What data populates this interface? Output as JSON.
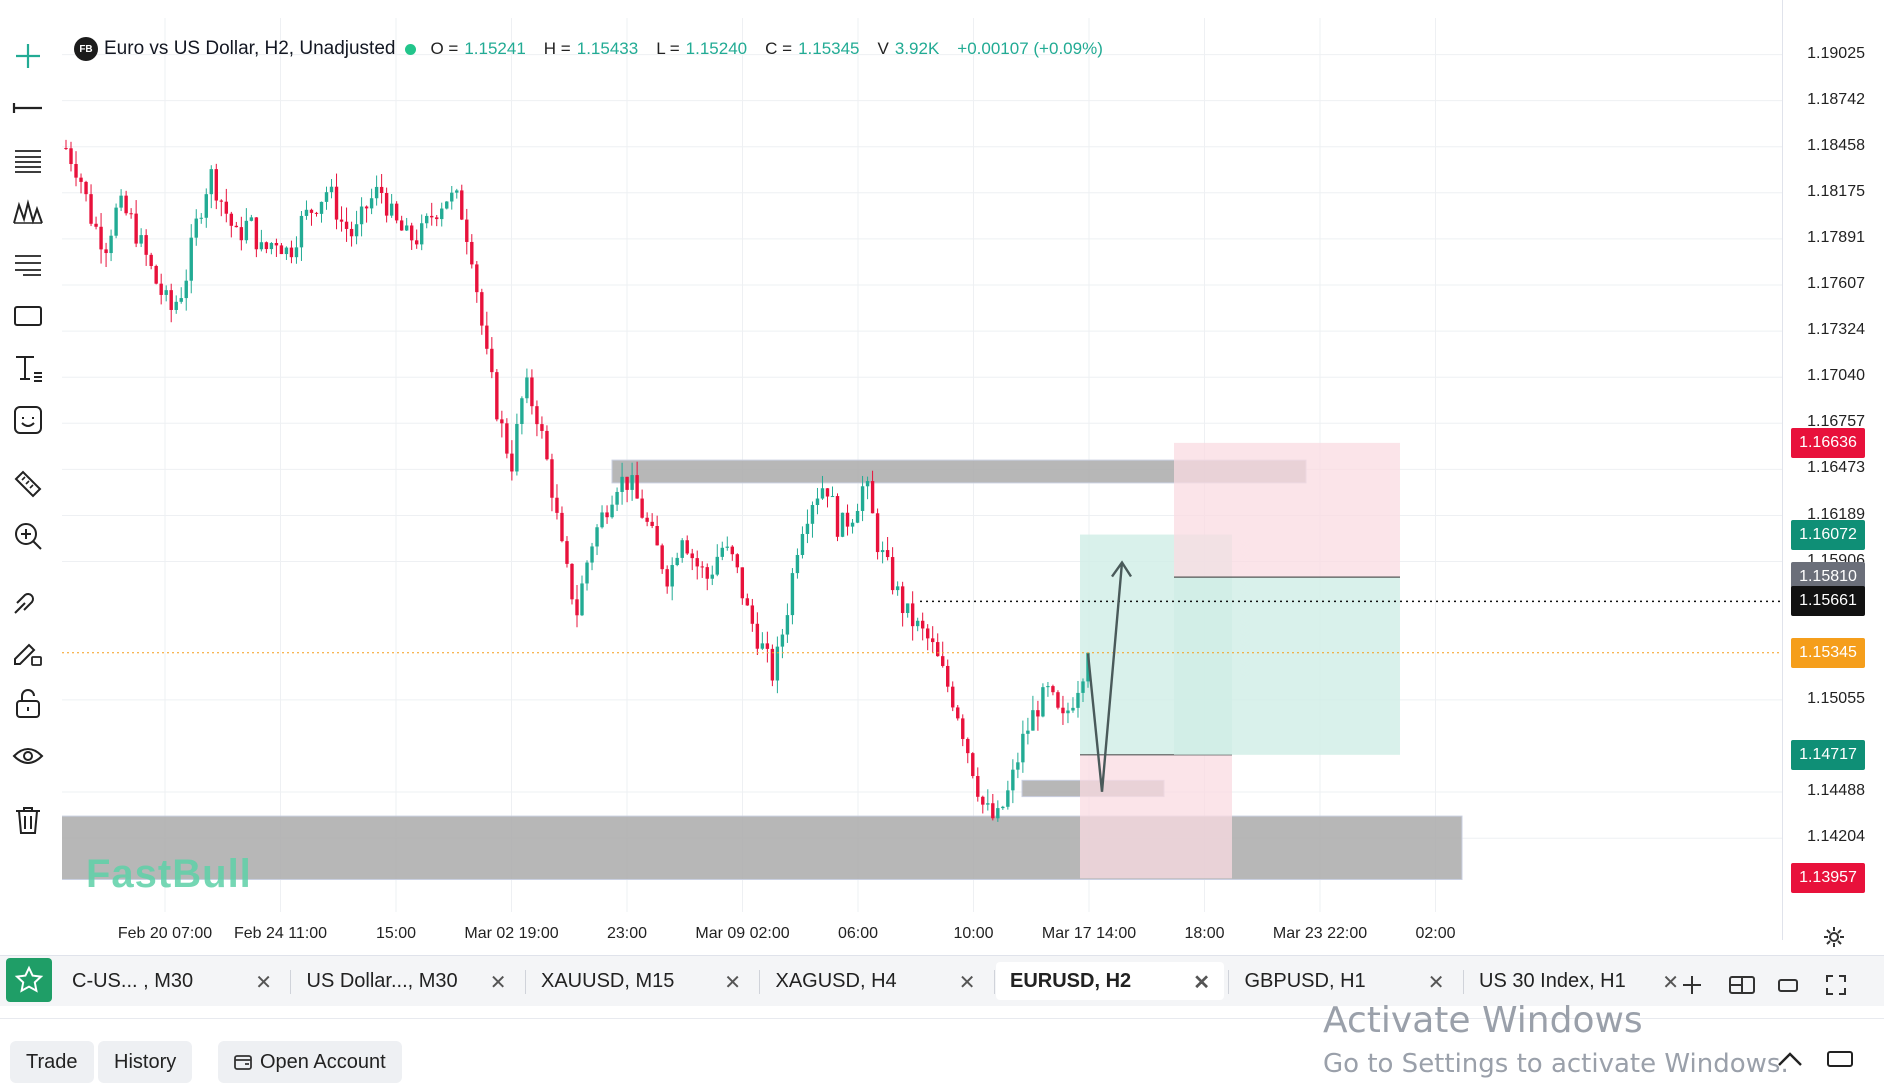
{
  "legend": {
    "logo_text": "FB",
    "title": "Euro vs US Dollar, H2, Unadjusted",
    "o_label": "O =",
    "o_value": "1.15241",
    "h_label": "H =",
    "h_value": "1.15433",
    "l_label": "L =",
    "l_value": "1.15240",
    "c_label": "C =",
    "c_value": "1.15345",
    "v_label": "V",
    "v_value": "3.92K",
    "change": "+0.00107 (+0.09%)"
  },
  "watermark": "FastBull",
  "price_axis": {
    "ticks": [
      "1.19025",
      "1.18742",
      "1.18458",
      "1.18175",
      "1.17891",
      "1.17607",
      "1.17324",
      "1.17040",
      "1.16757",
      "1.16473",
      "1.16189",
      "1.15906",
      "1.15055",
      "1.14488",
      "1.14204"
    ],
    "badges": [
      {
        "label": "1.16636",
        "color": "#e8113b",
        "kind": "stop-loss"
      },
      {
        "label": "1.16072",
        "color": "#0f8f76",
        "kind": "take-profit"
      },
      {
        "label": "1.15810",
        "color": "#6b6f7a",
        "kind": "entry"
      },
      {
        "label": "1.15661",
        "color": "#111111",
        "kind": "crosshair"
      },
      {
        "label": "1.15345",
        "color": "#f59e1b",
        "kind": "last-price"
      },
      {
        "label": "1.14717",
        "color": "#0f8f76",
        "kind": "take-profit-2"
      },
      {
        "label": "1.13957",
        "color": "#e8113b",
        "kind": "stop-loss-2"
      }
    ]
  },
  "time_axis": {
    "ticks": [
      "Feb 20 07:00",
      "Feb 24 11:00",
      "15:00",
      "Mar 02 19:00",
      "23:00",
      "Mar 09 02:00",
      "06:00",
      "10:00",
      "Mar 17 14:00",
      "18:00",
      "Mar 23 22:00",
      "02:00"
    ]
  },
  "toolbar": {
    "tools": [
      "crosshair-icon",
      "horizontal-line-icon",
      "fib-retracement-icon",
      "pattern-icon",
      "parallel-channel-icon",
      "rectangle-icon",
      "text-icon",
      "emoji-icon",
      "ruler-icon",
      "zoom-in-icon",
      "magnet-icon",
      "lock-drawing-icon",
      "unlock-icon",
      "eye-icon",
      "trash-icon"
    ]
  },
  "tabs": [
    {
      "label": "C-US... , M30",
      "active": false
    },
    {
      "label": "US Dollar..., M30",
      "active": false
    },
    {
      "label": "XAUUSD, M15",
      "active": false
    },
    {
      "label": "XAGUSD, H4",
      "active": false
    },
    {
      "label": "EURUSD, H2",
      "active": true
    },
    {
      "label": "GBPUSD, H1",
      "active": false
    },
    {
      "label": "US 30 Index, H1",
      "active": false
    }
  ],
  "tab_close_glyph": "✕",
  "bottom": {
    "trade_label": "Trade",
    "history_label": "History",
    "open_account_label": "Open Account"
  },
  "activate_windows": {
    "line1": "Activate Windows",
    "line2": "Go to Settings to activate Windows."
  },
  "colors": {
    "bull": "#22ab94",
    "bear": "#e8113b",
    "zone": "#aaaaaa",
    "profit": "#cfeee6",
    "loss": "#fadbe1",
    "last": "#f59e1b"
  },
  "chart_data": {
    "type": "candlestick",
    "symbol": "EURUSD",
    "interval": "H2",
    "ylim": [
      1.1375,
      1.1925
    ],
    "close_path": [
      1.1845,
      1.183,
      1.18,
      1.1785,
      1.181,
      1.18,
      1.178,
      1.176,
      1.1745,
      1.176,
      1.18,
      1.183,
      1.181,
      1.179,
      1.18,
      1.178,
      1.179,
      1.178,
      1.18,
      1.181,
      1.182,
      1.18,
      1.179,
      1.181,
      1.182,
      1.18,
      1.179,
      1.179,
      1.1805,
      1.1815,
      1.1812,
      1.178,
      1.172,
      1.168,
      1.165,
      1.17,
      1.168,
      1.164,
      1.159,
      1.156,
      1.16,
      1.162,
      1.164,
      1.164,
      1.162,
      1.16,
      1.158,
      1.161,
      1.159,
      1.158,
      1.16,
      1.159,
      1.156,
      1.154,
      1.152,
      1.156,
      1.161,
      1.163,
      1.164,
      1.161,
      1.162,
      1.164,
      1.16,
      1.158,
      1.156,
      1.155,
      1.154,
      1.152,
      1.15,
      1.147,
      1.144,
      1.143,
      1.145,
      1.148,
      1.15,
      1.151,
      1.149,
      1.151,
      1.1534
    ],
    "zones": [
      {
        "from": 1.1639,
        "to": 1.1653,
        "type": "supply"
      },
      {
        "from": 1.1446,
        "to": 1.1456,
        "type": "small-support"
      },
      {
        "from": 1.1395,
        "to": 1.1434,
        "type": "demand"
      }
    ],
    "positions": [
      {
        "entry": 1.14717,
        "target": 1.16072,
        "stop": 1.13957,
        "side": "long"
      },
      {
        "entry": 1.1581,
        "target": 1.14717,
        "stop": 1.16636,
        "side": "short"
      }
    ],
    "last_price": 1.15345
  }
}
